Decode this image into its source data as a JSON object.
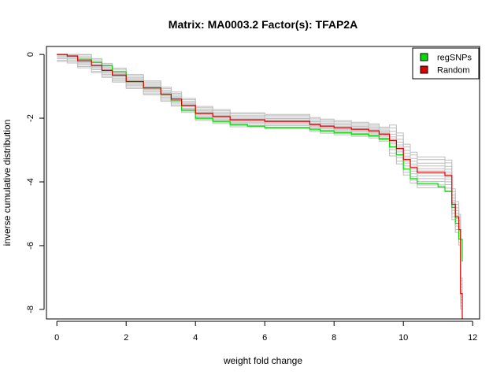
{
  "chart_data": {
    "type": "line",
    "title": "Matrix: MA0003.2 Factor(s): TFAP2A",
    "xlabel": "weight fold change",
    "ylabel": "inverse cumulative distribution",
    "xlim": [
      -0.3,
      12.2
    ],
    "ylim": [
      -8.3,
      0.25
    ],
    "x_ticks": [
      0,
      2,
      4,
      6,
      8,
      10,
      12
    ],
    "y_ticks": [
      0,
      -2,
      -4,
      -6,
      -8
    ],
    "grid": false,
    "legend_position": "top-right",
    "legend": [
      {
        "label": "regSNPs",
        "color": "#00e000"
      },
      {
        "label": "Random",
        "color": "#e00000"
      }
    ],
    "series": [
      {
        "name": "regSNPs",
        "color": "#00e000",
        "x": [
          0,
          0.3,
          0.6,
          1.0,
          1.3,
          1.6,
          2.0,
          2.5,
          3.0,
          3.3,
          3.6,
          4.0,
          4.5,
          5.0,
          5.5,
          6.0,
          6.5,
          7.0,
          7.3,
          7.6,
          8.0,
          8.5,
          9.0,
          9.3,
          9.6,
          9.8,
          10.0,
          10.2,
          10.4,
          10.8,
          11.0,
          11.2,
          11.4,
          11.5,
          11.6,
          11.7
        ],
        "y": [
          0,
          -0.05,
          -0.15,
          -0.25,
          -0.35,
          -0.55,
          -0.85,
          -1.05,
          -1.25,
          -1.45,
          -1.75,
          -2.0,
          -2.1,
          -2.2,
          -2.25,
          -2.3,
          -2.3,
          -2.3,
          -2.35,
          -2.4,
          -2.45,
          -2.5,
          -2.55,
          -2.65,
          -2.9,
          -3.15,
          -3.6,
          -3.9,
          -4.05,
          -4.05,
          -4.15,
          -4.3,
          -4.8,
          -5.3,
          -5.8,
          -6.5
        ]
      },
      {
        "name": "Random",
        "color": "#e00000",
        "x": [
          0,
          0.3,
          0.6,
          1.0,
          1.3,
          1.6,
          2.0,
          2.5,
          3.0,
          3.3,
          3.6,
          4.0,
          4.5,
          5.0,
          5.5,
          6.0,
          6.5,
          7.0,
          7.3,
          7.6,
          8.0,
          8.5,
          9.0,
          9.3,
          9.6,
          9.8,
          10.0,
          10.2,
          10.4,
          10.8,
          11.0,
          11.2,
          11.4,
          11.5,
          11.6,
          11.65,
          11.7
        ],
        "y": [
          0,
          -0.05,
          -0.2,
          -0.35,
          -0.5,
          -0.65,
          -0.85,
          -1.05,
          -1.25,
          -1.4,
          -1.6,
          -1.85,
          -1.95,
          -2.05,
          -2.05,
          -2.1,
          -2.1,
          -2.1,
          -2.2,
          -2.25,
          -2.3,
          -2.35,
          -2.4,
          -2.5,
          -2.7,
          -2.95,
          -3.3,
          -3.55,
          -3.7,
          -3.7,
          -3.7,
          -3.8,
          -4.7,
          -5.1,
          -5.5,
          -7.5,
          -8.3
        ]
      }
    ],
    "background_series_color": "#bebebe"
  }
}
